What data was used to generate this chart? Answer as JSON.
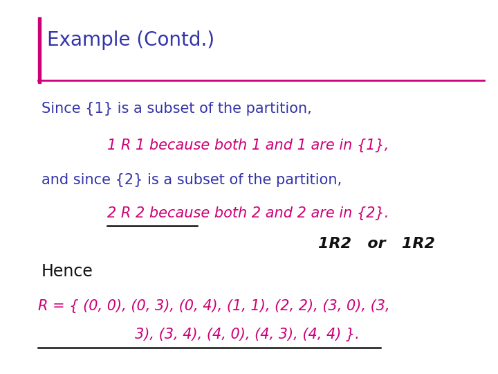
{
  "title": "Example (Contd.)",
  "title_color": "#3333aa",
  "title_fontsize": 20,
  "accent_line_color": "#cc0077",
  "bg_color": "#ffffff",
  "line1": "Since {1} is a subset of the partition,",
  "line2": "1 R 1 because both 1 and 1 are in {1},",
  "line3": "and since {2} is a subset of the partition,",
  "line4": "2 R 2 because both 2 and 2 are in {2}.",
  "line5": "Hence",
  "line6": "R = { (0, 0), (0, 3), (0, 4), (1, 1), (2, 2), (3, 0), (3,",
  "line7": "3), (3, 4), (4, 0), (4, 3), (4, 4) }.",
  "blue_color": "#3333aa",
  "magenta_color": "#cc0077",
  "black_color": "#111111",
  "text_fontsize": 15,
  "r_set_fontsize": 15
}
